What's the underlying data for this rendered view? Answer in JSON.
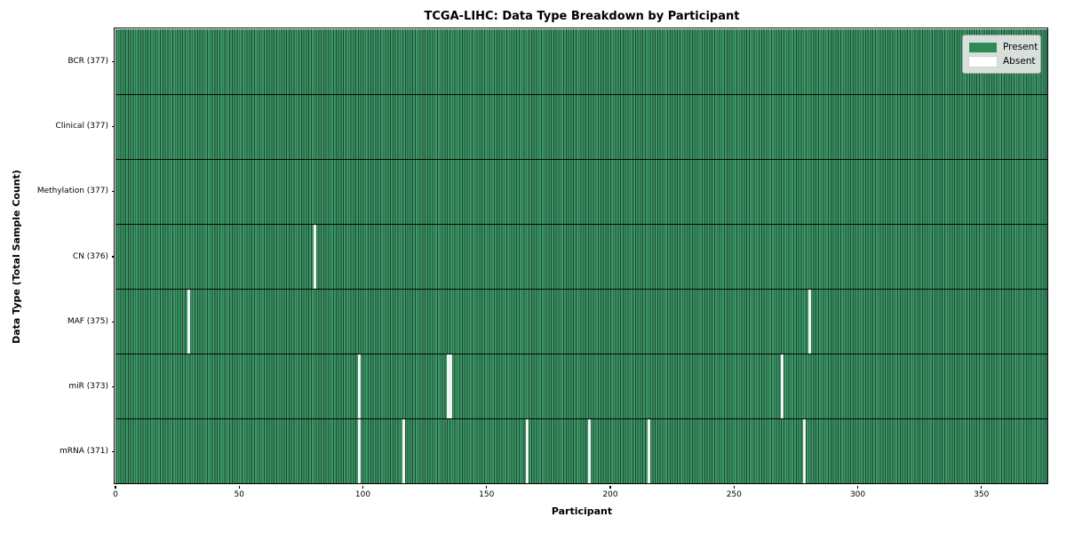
{
  "title": "TCGA-LIHC: Data Type Breakdown by Participant",
  "colors": {
    "present": "#2e8b57",
    "present_fill": "#3d9768",
    "cell_edge": "#1c4931",
    "absent": "#ffffff",
    "legend_bg": "#eaeaea"
  },
  "chart_data": {
    "type": "heatmap",
    "title": "TCGA-LIHC: Data Type Breakdown by Participant",
    "xlabel": "Participant",
    "ylabel": "Data Type (Total Sample Count)",
    "legend": {
      "present": "Present",
      "absent": "Absent"
    },
    "legend_position": "upper right",
    "n_participants": 377,
    "x_range": [
      0,
      377
    ],
    "x_ticks": [
      0,
      50,
      100,
      150,
      200,
      250,
      300,
      350
    ],
    "rows": [
      {
        "label": "BCR (377)",
        "data_type": "BCR",
        "total": 377,
        "absent_indices": []
      },
      {
        "label": "Clinical (377)",
        "data_type": "Clinical",
        "total": 377,
        "absent_indices": []
      },
      {
        "label": "Methylation (377)",
        "data_type": "Methylation",
        "total": 377,
        "absent_indices": []
      },
      {
        "label": "CN (376)",
        "data_type": "CN",
        "total": 376,
        "absent_indices": [
          80
        ]
      },
      {
        "label": "MAF (375)",
        "data_type": "MAF",
        "total": 375,
        "absent_indices": [
          29,
          280
        ]
      },
      {
        "label": "miR (373)",
        "data_type": "miR",
        "total": 373,
        "absent_indices": [
          98,
          134,
          135,
          269
        ]
      },
      {
        "label": "mRNA (371)",
        "data_type": "mRNA",
        "total": 371,
        "absent_indices": [
          98,
          116,
          166,
          191,
          215,
          278
        ]
      }
    ]
  }
}
